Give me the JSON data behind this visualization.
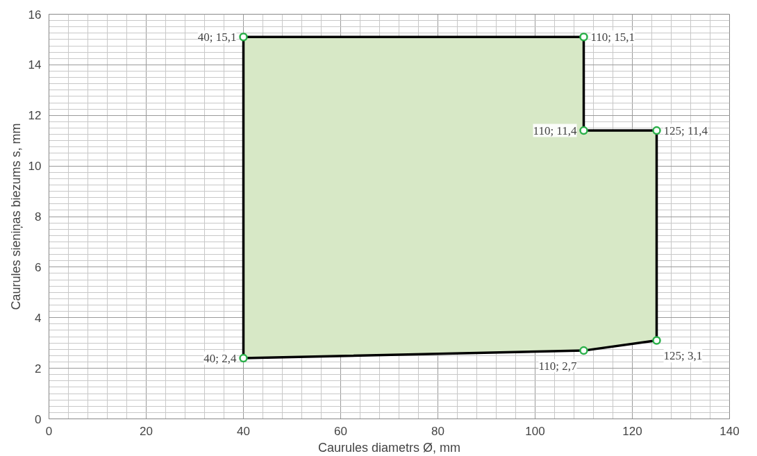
{
  "chart_data": {
    "type": "area",
    "xlabel": "Caurules diametrs Ø, mm",
    "ylabel": "Caurules sieniņas biezums s, mm",
    "x": [
      40,
      40,
      110,
      110,
      125,
      125,
      110
    ],
    "series": [
      {
        "color": "#d7e8c6",
        "values": [
          2.4,
          15.1,
          15.1,
          11.4,
          11.4,
          3.1,
          2.7
        ],
        "value_labels": [
          "40; 2,4",
          "40; 15,1",
          "110; 15,1",
          "110; 11,4",
          "125; 11,4",
          "125; 3,1",
          "110; 2,7"
        ]
      }
    ],
    "xlim": [
      0,
      140
    ],
    "ylim": [
      0,
      16
    ],
    "xticks": [
      0,
      20,
      40,
      60,
      80,
      100,
      120,
      140
    ],
    "yticks": [
      0,
      2,
      4,
      6,
      8,
      10,
      12,
      14,
      16
    ],
    "grid": true,
    "marker": "circle",
    "line_style": "solid"
  }
}
